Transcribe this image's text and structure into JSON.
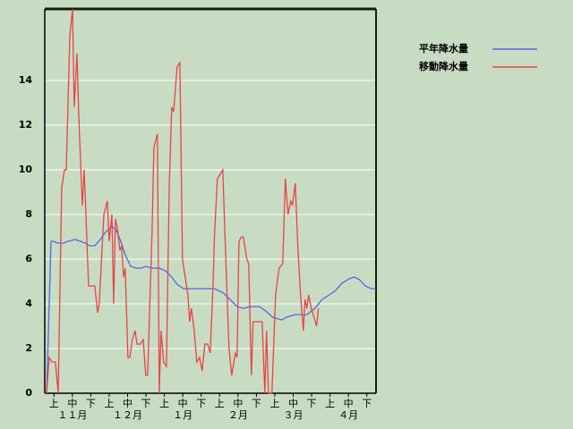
{
  "chart_data": {
    "type": "line",
    "legend": "right",
    "grid": true,
    "background": "#c8dcc4",
    "xlim": [
      0,
      180
    ],
    "xticks": [
      {
        "value": 5,
        "label": "上"
      },
      {
        "value": 15,
        "label": "中"
      },
      {
        "value": 25,
        "label": "下"
      },
      {
        "value": 35,
        "label": "上"
      },
      {
        "value": 45,
        "label": "中"
      },
      {
        "value": 55,
        "label": "下"
      },
      {
        "value": 65,
        "label": "上"
      },
      {
        "value": 75,
        "label": "中"
      },
      {
        "value": 85,
        "label": "下"
      },
      {
        "value": 95,
        "label": "上"
      },
      {
        "value": 105,
        "label": "中"
      },
      {
        "value": 115,
        "label": "下"
      },
      {
        "value": 125,
        "label": "上"
      },
      {
        "value": 135,
        "label": "中"
      },
      {
        "value": 145,
        "label": "下"
      },
      {
        "value": 155,
        "label": "上"
      },
      {
        "value": 165,
        "label": "中"
      },
      {
        "value": 175,
        "label": "下"
      }
    ],
    "month_ticks": [
      {
        "value": 15,
        "label": "１１月"
      },
      {
        "value": 45,
        "label": "１２月"
      },
      {
        "value": 75,
        "label": "１月"
      },
      {
        "value": 105,
        "label": "２月"
      },
      {
        "value": 135,
        "label": "３月"
      },
      {
        "value": 165,
        "label": "４月"
      }
    ],
    "ylim": [
      0,
      17.2
    ],
    "yticks": [
      0,
      2,
      4,
      6,
      8,
      10,
      12,
      14
    ],
    "series": [
      {
        "name": "平年降水量",
        "color": "#5566e0",
        "x": [
          1.0,
          3.4,
          4.9,
          6.8,
          8.3,
          10.2,
          12.6,
          16.5,
          19.4,
          21.9,
          24.3,
          27.2,
          30.1,
          33.0,
          36.5,
          38.9,
          41.3,
          43.7,
          46.7,
          49.6,
          52.5,
          54.9,
          58.3,
          62.2,
          65.6,
          69.0,
          71.9,
          75.3,
          80.2,
          87.5,
          92.3,
          97.2,
          100.6,
          104.5,
          107.9,
          111.8,
          116.6,
          120.0,
          123.9,
          128.8,
          131.2,
          136.1,
          142.4,
          146.8,
          150.7,
          154.6,
          158.0,
          161.4,
          165.3,
          168.2,
          171.1,
          174.1,
          177.5,
          179.9
        ],
        "values": [
          0,
          6.8,
          6.8,
          6.72,
          6.72,
          6.72,
          6.8,
          6.88,
          6.8,
          6.72,
          6.6,
          6.6,
          6.88,
          7.2,
          7.48,
          7.28,
          6.8,
          6.2,
          5.68,
          5.6,
          5.6,
          5.68,
          5.6,
          5.6,
          5.48,
          5.2,
          4.88,
          4.68,
          4.68,
          4.68,
          4.68,
          4.48,
          4.2,
          3.88,
          3.8,
          3.88,
          3.88,
          3.68,
          3.4,
          3.28,
          3.4,
          3.52,
          3.52,
          3.8,
          4.2,
          4.4,
          4.6,
          4.92,
          5.12,
          5.2,
          5.08,
          4.8,
          4.68,
          4.68
        ]
      },
      {
        "name": "移動降水量",
        "color": "#e84444",
        "x": [
          1.0,
          2.4,
          3.9,
          5.8,
          7.3,
          9.2,
          10.7,
          11.7,
          13.6,
          15.1,
          16.0,
          17.5,
          18.5,
          20.4,
          21.4,
          22.4,
          23.8,
          27.2,
          28.7,
          29.6,
          32.1,
          34.0,
          35.0,
          36.5,
          37.4,
          38.4,
          39.4,
          40.8,
          41.8,
          42.8,
          43.7,
          45.2,
          46.2,
          47.6,
          49.1,
          50.1,
          52.0,
          53.5,
          54.9,
          55.9,
          58.3,
          59.3,
          61.2,
          62.2,
          63.2,
          64.6,
          66.1,
          67.6,
          69.0,
          70.0,
          71.9,
          73.4,
          74.8,
          76.3,
          77.8,
          78.7,
          79.7,
          81.2,
          82.6,
          84.1,
          85.5,
          87.0,
          88.5,
          89.9,
          91.4,
          92.3,
          93.8,
          95.3,
          96.7,
          98.7,
          100.1,
          101.6,
          103.5,
          104.5,
          105.5,
          106.9,
          107.9,
          109.8,
          110.8,
          112.3,
          113.2,
          114.7,
          117.1,
          118.1,
          119.6,
          120.5,
          121.5,
          123.4,
          125.4,
          127.3,
          129.3,
          130.7,
          132.2,
          133.7,
          134.6,
          136.1,
          137.5,
          139.0,
          140.5,
          141.4,
          142.4,
          143.4,
          144.8,
          146.3,
          147.7,
          148.7
        ],
        "values": [
          0,
          1.6,
          1.4,
          1.4,
          0,
          9.2,
          10,
          10,
          16,
          17.2,
          12.8,
          15.2,
          12.4,
          8.4,
          10,
          8,
          4.8,
          4.8,
          3.6,
          4,
          8,
          8.6,
          6.8,
          8,
          4,
          7.8,
          7.4,
          6.4,
          6.6,
          5.2,
          5.6,
          1.6,
          1.6,
          2.4,
          2.8,
          2.2,
          2.2,
          2.4,
          0.8,
          0.8,
          7.2,
          11,
          11.6,
          0,
          2.8,
          1.4,
          1.2,
          9.2,
          12.8,
          12.6,
          14.6,
          14.8,
          6,
          5.2,
          4.4,
          3.2,
          3.8,
          2.8,
          1.4,
          1.6,
          1,
          2.2,
          2.2,
          1.8,
          4.8,
          7.2,
          9.6,
          9.8,
          10,
          5.2,
          2,
          0.8,
          1.8,
          1.6,
          6.8,
          7,
          7,
          6,
          5.8,
          0.8,
          3.2,
          3.2,
          3.2,
          3.2,
          0,
          2.8,
          0,
          0,
          4.4,
          5.6,
          5.8,
          9.6,
          8,
          8.6,
          8.4,
          9.4,
          6.6,
          4.4,
          2.8,
          4.2,
          3.8,
          4.4,
          3.8,
          3.4,
          3.0,
          3.8
        ]
      }
    ]
  }
}
